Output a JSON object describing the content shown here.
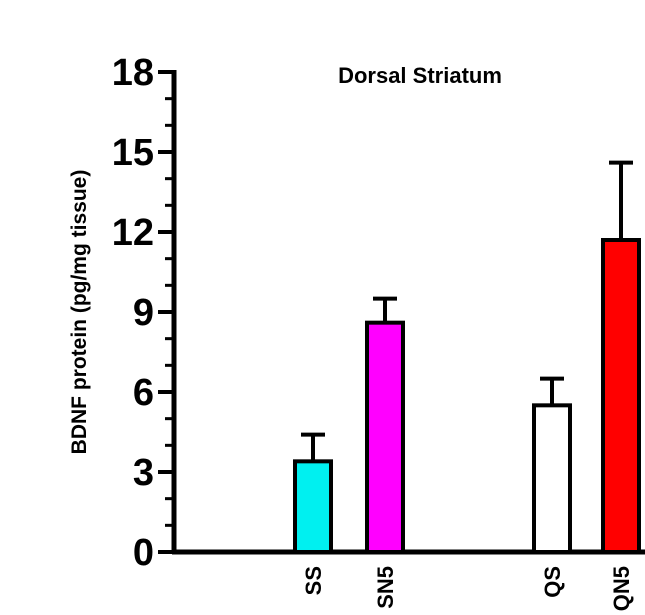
{
  "chart_data": {
    "type": "bar",
    "title": "Dorsal Striatum",
    "ylabel": "BDNF protein (pg/mg tissue)",
    "xlabel": "",
    "ylim": [
      0,
      18
    ],
    "yticks": [
      "0",
      "3",
      "6",
      "9",
      "12",
      "15",
      "18"
    ],
    "categories": [
      "SS",
      "SN5",
      "QS",
      "QN5"
    ],
    "values": [
      3.4,
      8.6,
      5.5,
      11.7
    ],
    "errors": [
      1.0,
      0.9,
      1.0,
      2.9
    ],
    "colors": [
      "#00f0f0",
      "#ff00ff",
      "#ffffff",
      "#ff0000"
    ],
    "grid": false,
    "legend": "none"
  }
}
